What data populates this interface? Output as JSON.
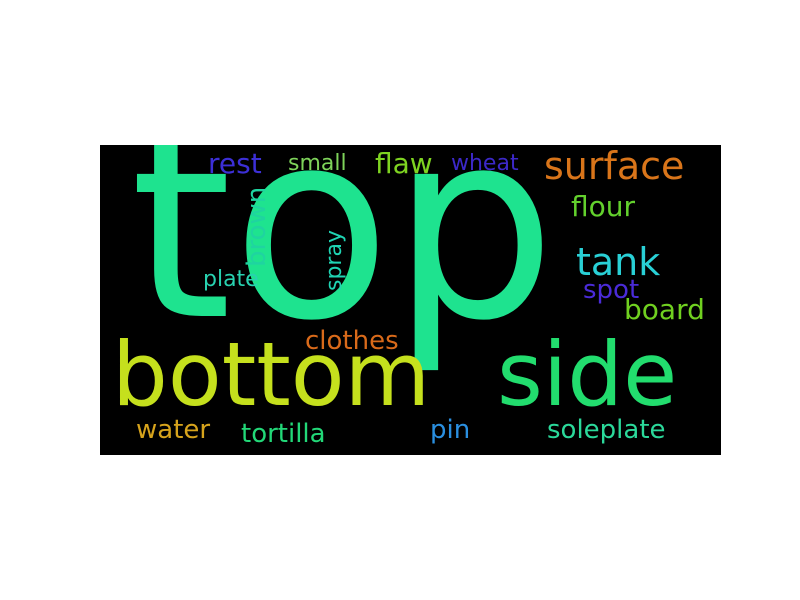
{
  "words": {
    "top": {
      "text": "top",
      "color": "#1ee38f"
    },
    "bottom": {
      "text": "bottom",
      "color": "#c5e01d"
    },
    "side": {
      "text": "side",
      "color": "#22dd6e"
    },
    "surface": {
      "text": "surface",
      "color": "#d9751a"
    },
    "tank": {
      "text": "tank",
      "color": "#29d0d6"
    },
    "flaw": {
      "text": "flaw",
      "color": "#7ed321"
    },
    "rest": {
      "text": "rest",
      "color": "#3c2fd6"
    },
    "small": {
      "text": "small",
      "color": "#7ed35a"
    },
    "wheat": {
      "text": "wheat",
      "color": "#3c28c8"
    },
    "flour": {
      "text": "flour",
      "color": "#63d12d"
    },
    "brown": {
      "text": "brown",
      "color": "#1fd4a0"
    },
    "spray": {
      "text": "spray",
      "color": "#1fd4b3"
    },
    "plate": {
      "text": "plate",
      "color": "#28d2b0"
    },
    "spot": {
      "text": "spot",
      "color": "#4a2bd8"
    },
    "board": {
      "text": "board",
      "color": "#70d020"
    },
    "clothes": {
      "text": "clothes",
      "color": "#d96a1a"
    },
    "water": {
      "text": "water",
      "color": "#d6a31c"
    },
    "tortilla": {
      "text": "tortilla",
      "color": "#22d878"
    },
    "pin": {
      "text": "pin",
      "color": "#2a8fe0"
    },
    "soleplate": {
      "text": "soleplate",
      "color": "#2bd89a"
    }
  }
}
